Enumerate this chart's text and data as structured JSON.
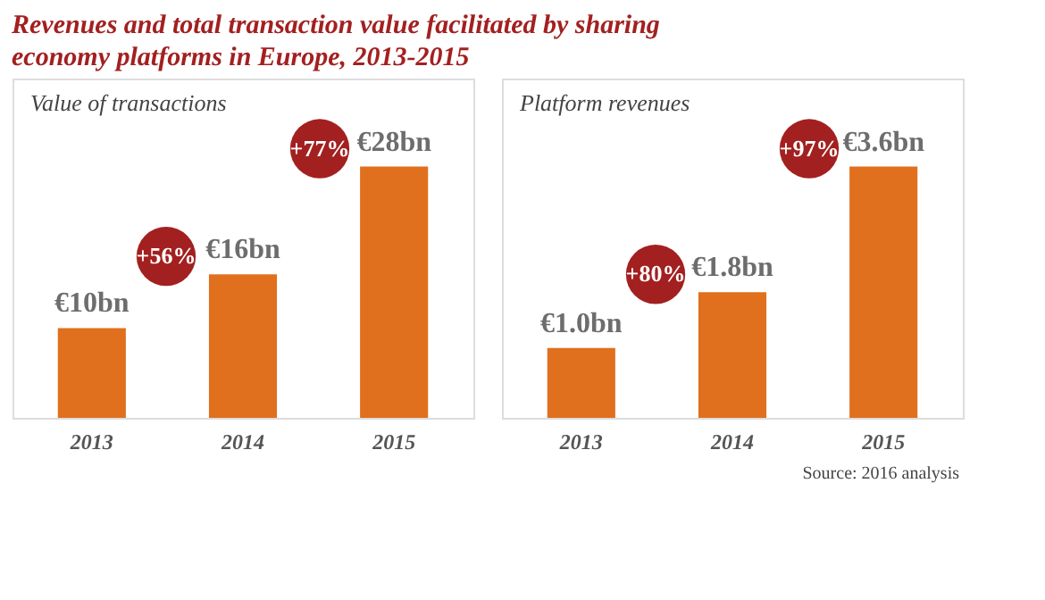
{
  "chart_data": [
    {
      "type": "bar",
      "title": "Revenues and total transaction value facilitated by sharing economy platforms in Europe, 2013-2015",
      "subtitle": "Value of transactions",
      "categories": [
        "2013",
        "2014",
        "2015"
      ],
      "values": [
        10,
        16,
        28
      ],
      "value_labels": [
        "€10bn",
        "€16bn",
        "€28bn"
      ],
      "color": "#e0701e",
      "annotations": [
        "+56%",
        "+77%"
      ]
    },
    {
      "type": "bar",
      "title": "Platform revenues",
      "categories": [
        "2013",
        "2014",
        "2015"
      ],
      "values": [
        1.0,
        1.8,
        3.6
      ],
      "value_labels": [
        "€1.0bn",
        "€1.8bn",
        "€3.6bn"
      ],
      "color": "#e0701e",
      "annotations": [
        "+80%",
        "+97%",
        "Source: 2016 analysis"
      ]
    }
  ]
}
